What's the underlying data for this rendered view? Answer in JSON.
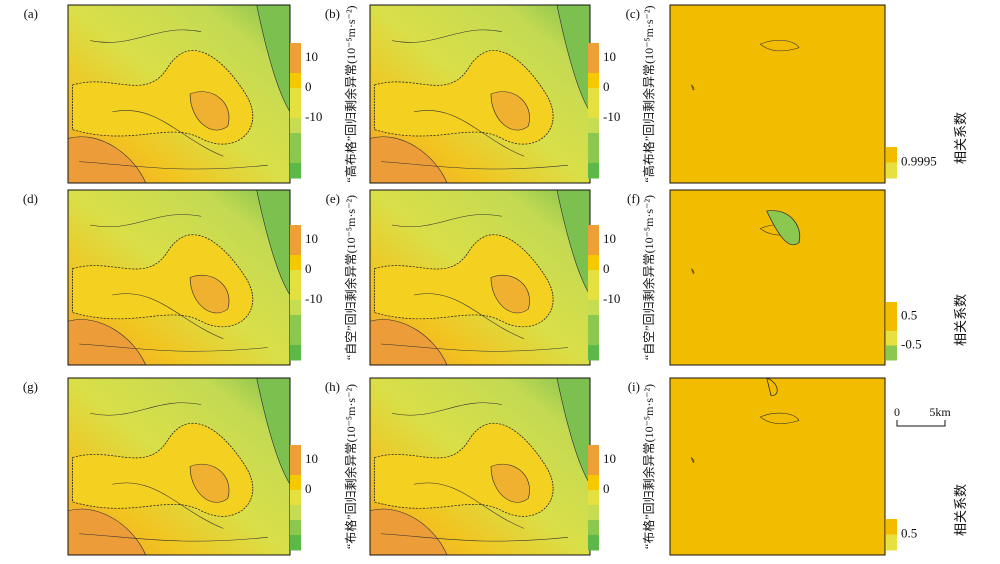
{
  "panels": [
    {
      "label": "(a)",
      "colorbar": [
        10,
        0,
        -10
      ]
    },
    {
      "label": "(b)",
      "side_label": "“高布格”回归剩余异常(10⁻⁵m·s⁻²)",
      "colorbar": [
        10,
        0,
        -10
      ]
    },
    {
      "label": "(c)",
      "side_label": "“高布格”回归剩余异常(10⁻⁵m·s⁻²)",
      "colorbar": [
        0.9995
      ],
      "colorbar_title": "相关系数"
    },
    {
      "label": "(d)",
      "colorbar": [
        10,
        0,
        -10
      ]
    },
    {
      "label": "(e)",
      "side_label": "“自空”回归剩余异常(10⁻⁵m·s⁻²)",
      "colorbar": [
        10,
        0,
        -10
      ]
    },
    {
      "label": "(f)",
      "side_label": "“自空”回归剩余异常(10⁻⁵m·s⁻²)",
      "colorbar": [
        0.5,
        -0.5
      ],
      "colorbar_title": "相关系数"
    },
    {
      "label": "(g)",
      "colorbar": [
        10,
        0
      ]
    },
    {
      "label": "(h)",
      "side_label": "“布格”回归剩余异常(10⁻⁵m·s⁻²)",
      "colorbar": [
        10,
        0
      ]
    },
    {
      "label": "(i)",
      "side_label": "“布格”回归剩余异常(10⁻⁵m·s⁻²)",
      "colorbar": [
        0.5
      ],
      "colorbar_title": "相关系数"
    }
  ],
  "scale_bar": [
    "0",
    "5km"
  ]
}
